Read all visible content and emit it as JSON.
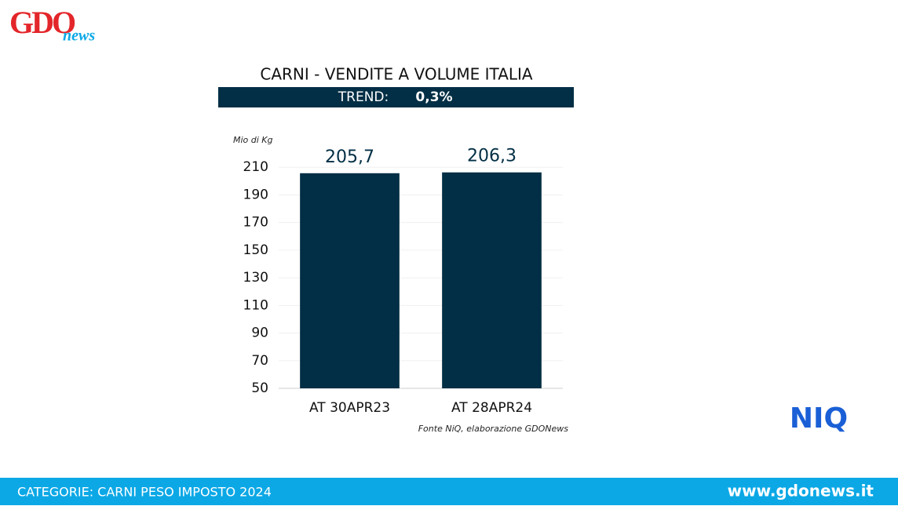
{
  "brand": {
    "logo_main": "GDO",
    "logo_sub": "news",
    "partner": "NIQ"
  },
  "chart_data": {
    "type": "bar",
    "title": "CARNI - VENDITE A VOLUME ITALIA",
    "trend_label": "TREND:",
    "trend_value": "0,3%",
    "y_axis_label": "Mio di Kg",
    "categories": [
      "AT 30APR23",
      "AT 28APR24"
    ],
    "values": [
      205.7,
      206.3
    ],
    "value_labels": [
      "205,7",
      "206,3"
    ],
    "color": "#022f45",
    "ylim": [
      50,
      230
    ],
    "yticks": [
      50,
      70,
      90,
      110,
      130,
      150,
      170,
      190,
      210
    ],
    "grid": true,
    "source": "Fonte NiQ, elaborazione GDONews"
  },
  "footer": {
    "category": "CATEGORIE: CARNI PESO IMPOSTO 2024",
    "website": "www.gdonews.it"
  }
}
